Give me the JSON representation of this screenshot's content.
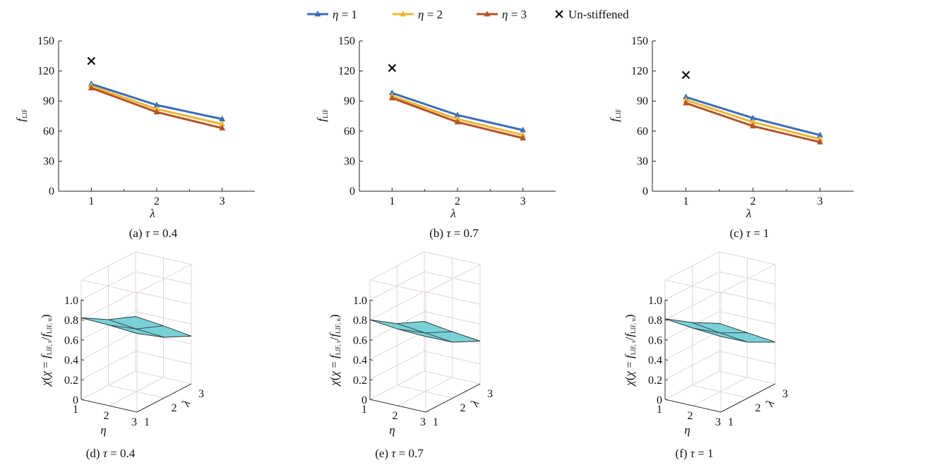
{
  "legend": {
    "items": [
      {
        "label": "η = 1",
        "color": "#3a6db6"
      },
      {
        "label": "η = 2",
        "color": "#f2b532"
      },
      {
        "label": "η = 3",
        "color": "#b2532a"
      },
      {
        "label": "Un-stiffened",
        "color": "#111111"
      }
    ]
  },
  "chart_data": [
    {
      "type": "line",
      "caption": "(a) τ = 0.4",
      "xlabel": "λ",
      "ylabel": "f_LIF",
      "x": [
        1,
        2,
        3
      ],
      "xlim": [
        0.5,
        3.5
      ],
      "ylim": [
        0,
        150
      ],
      "yticks": [
        "0",
        "30",
        "60",
        "90",
        "120",
        "150"
      ],
      "xticks": [
        "1",
        "2",
        "3"
      ],
      "series": [
        {
          "name": "η = 1",
          "values": [
            107,
            86,
            72
          ]
        },
        {
          "name": "η = 2",
          "values": [
            105,
            82,
            67
          ]
        },
        {
          "name": "η = 3",
          "values": [
            103,
            79,
            63
          ]
        }
      ],
      "unstiffened": {
        "x": 1,
        "y": 130
      }
    },
    {
      "type": "line",
      "caption": "(b) τ = 0.7",
      "xlabel": "λ",
      "ylabel": "f_LIF",
      "x": [
        1,
        2,
        3
      ],
      "xlim": [
        0.5,
        3.5
      ],
      "ylim": [
        0,
        150
      ],
      "yticks": [
        "0",
        "30",
        "60",
        "90",
        "120",
        "150"
      ],
      "xticks": [
        "1",
        "2",
        "3"
      ],
      "series": [
        {
          "name": "η = 1",
          "values": [
            98,
            76,
            61
          ]
        },
        {
          "name": "η = 2",
          "values": [
            95,
            72,
            56
          ]
        },
        {
          "name": "η = 3",
          "values": [
            93,
            69,
            53
          ]
        }
      ],
      "unstiffened": {
        "x": 1,
        "y": 123
      }
    },
    {
      "type": "line",
      "caption": "(c) τ = 1",
      "xlabel": "λ",
      "ylabel": "f_LIF",
      "x": [
        1,
        2,
        3
      ],
      "xlim": [
        0.5,
        3.5
      ],
      "ylim": [
        0,
        150
      ],
      "yticks": [
        "0",
        "30",
        "60",
        "90",
        "120",
        "150"
      ],
      "xticks": [
        "1",
        "2",
        "3"
      ],
      "series": [
        {
          "name": "η = 1",
          "values": [
            94,
            73,
            56
          ]
        },
        {
          "name": "η = 2",
          "values": [
            91,
            69,
            52
          ]
        },
        {
          "name": "η = 3",
          "values": [
            88,
            65,
            49
          ]
        }
      ],
      "unstiffened": {
        "x": 1,
        "y": 116
      }
    },
    {
      "type": "surface3d",
      "caption": "(d) τ = 0.4",
      "xlabel": "η",
      "ylabel": "λ",
      "zlabel": "χ(χ = f_LIF,s/f_LIF,u)",
      "zlim": [
        0,
        1
      ],
      "zticks": [
        "0",
        "0.2",
        "0.4",
        "0.6",
        "0.8",
        "1.0"
      ],
      "xticks": [
        "1",
        "2",
        "3"
      ],
      "yticks": [
        "1",
        "2",
        "3"
      ],
      "eta": [
        1,
        2,
        3
      ],
      "lambda": [
        1,
        2,
        3
      ],
      "values": [
        [
          0.82,
          0.66,
          0.55
        ],
        [
          0.81,
          0.63,
          0.52
        ],
        [
          0.79,
          0.61,
          0.48
        ]
      ]
    },
    {
      "type": "surface3d",
      "caption": "(e) τ = 0.7",
      "xlabel": "η",
      "ylabel": "λ",
      "zlabel": "χ(χ = f_LIF,s/f_LIF,u)",
      "zlim": [
        0,
        1
      ],
      "zticks": [
        "0",
        "0.2",
        "0.4",
        "0.6",
        "0.8",
        "1.0"
      ],
      "xticks": [
        "1",
        "2",
        "3"
      ],
      "yticks": [
        "1",
        "2",
        "3"
      ],
      "eta": [
        1,
        2,
        3
      ],
      "lambda": [
        1,
        2,
        3
      ],
      "values": [
        [
          0.8,
          0.62,
          0.5
        ],
        [
          0.77,
          0.59,
          0.46
        ],
        [
          0.76,
          0.56,
          0.43
        ]
      ]
    },
    {
      "type": "surface3d",
      "caption": "(f) τ = 1",
      "xlabel": "η",
      "ylabel": "λ",
      "zlabel": "χ(χ = f_LIF,s/f_LIF,u)",
      "zlim": [
        0,
        1
      ],
      "zticks": [
        "0",
        "0.2",
        "0.4",
        "0.6",
        "0.8",
        "1.0"
      ],
      "xticks": [
        "1",
        "2",
        "3"
      ],
      "yticks": [
        "1",
        "2",
        "3"
      ],
      "eta": [
        1,
        2,
        3
      ],
      "lambda": [
        1,
        2,
        3
      ],
      "values": [
        [
          0.81,
          0.63,
          0.48
        ],
        [
          0.78,
          0.59,
          0.45
        ],
        [
          0.76,
          0.56,
          0.42
        ]
      ]
    }
  ]
}
